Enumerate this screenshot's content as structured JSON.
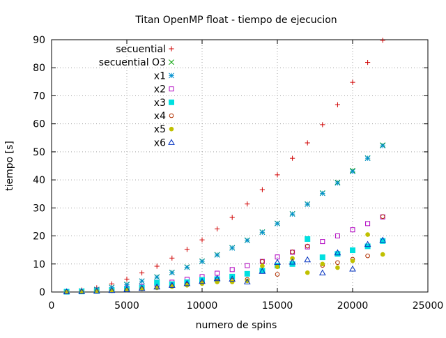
{
  "chart_data": {
    "type": "scatter",
    "title": "Titan OpenMP float - tiempo de ejecucion",
    "xlabel": "numero de spins",
    "ylabel": "tiempo [s]",
    "xlim": [
      0,
      25000
    ],
    "ylim": [
      0,
      90
    ],
    "xticks": [
      0,
      5000,
      10000,
      15000,
      20000,
      25000
    ],
    "yticks": [
      0,
      10,
      20,
      30,
      40,
      50,
      60,
      70,
      80,
      90
    ],
    "grid": true,
    "legend_position": "top-left",
    "x": [
      1000,
      2000,
      3000,
      4000,
      5000,
      6000,
      7000,
      8000,
      9000,
      10000,
      11000,
      12000,
      13000,
      14000,
      15000,
      16000,
      17000,
      18000,
      19000,
      20000,
      21000,
      22000
    ],
    "series": [
      {
        "name": "secuential",
        "marker": "plus",
        "color": "#d00000",
        "values": [
          0.2,
          0.7,
          1.5,
          2.9,
          4.6,
          6.8,
          9.2,
          12.1,
          15.2,
          18.6,
          22.5,
          26.6,
          31.4,
          36.5,
          41.8,
          47.7,
          53.2,
          59.7,
          66.8,
          74.8,
          81.9,
          89.8
        ]
      },
      {
        "name": "secuential O3",
        "marker": "cross",
        "color": "#00a000",
        "values": [
          0.1,
          0.4,
          0.9,
          1.7,
          2.7,
          3.9,
          5.4,
          7.0,
          8.9,
          11.0,
          13.3,
          15.8,
          18.5,
          21.4,
          24.5,
          27.9,
          31.4,
          35.3,
          39.1,
          43.3,
          47.8,
          52.4
        ]
      },
      {
        "name": "x1",
        "marker": "star",
        "color": "#0090d0",
        "values": [
          0.1,
          0.4,
          0.9,
          1.6,
          2.6,
          3.9,
          5.3,
          6.9,
          8.8,
          10.9,
          13.2,
          15.7,
          18.4,
          21.3,
          24.4,
          27.8,
          31.3,
          35.2,
          38.9,
          43.0,
          47.7,
          52.2
        ]
      },
      {
        "name": "x2",
        "marker": "square",
        "color": "#b000c0",
        "values": [
          0.1,
          0.2,
          0.5,
          0.9,
          1.4,
          2.0,
          2.7,
          3.5,
          4.5,
          5.5,
          6.7,
          8.0,
          9.4,
          10.9,
          12.5,
          14.2,
          16.1,
          18.0,
          20.0,
          22.2,
          24.4,
          26.8
        ]
      },
      {
        "name": "x3",
        "marker": "filled-square",
        "color": "#00e0e0",
        "values": [
          0.1,
          0.2,
          0.4,
          0.7,
          1.1,
          1.6,
          3.3,
          2.8,
          3.5,
          4.3,
          4.6,
          5.5,
          6.5,
          7.6,
          9.4,
          10.0,
          18.9,
          12.4,
          13.6,
          14.9,
          16.3,
          18.2
        ]
      },
      {
        "name": "x4",
        "marker": "circle",
        "color": "#b03000",
        "values": [
          0.05,
          0.15,
          0.3,
          0.5,
          0.8,
          1.2,
          1.6,
          2.1,
          2.7,
          3.3,
          3.9,
          4.1,
          4.5,
          10.9,
          6.3,
          14.3,
          16.4,
          9.5,
          10.5,
          11.7,
          12.9,
          26.9
        ]
      },
      {
        "name": "x5",
        "marker": "filled-circle",
        "color": "#c0c000",
        "values": [
          0.05,
          0.15,
          0.3,
          0.5,
          0.8,
          1.1,
          1.5,
          1.9,
          2.4,
          3.0,
          3.6,
          3.6,
          4.0,
          9.3,
          9.0,
          12.0,
          6.9,
          10.0,
          8.7,
          11.1,
          20.5,
          13.4
        ]
      },
      {
        "name": "x6",
        "marker": "triangle",
        "color": "#0030c0",
        "values": [
          0.1,
          0.2,
          0.3,
          0.6,
          0.9,
          1.3,
          1.8,
          2.4,
          3.0,
          3.8,
          4.8,
          4.6,
          3.6,
          7.4,
          10.6,
          10.7,
          11.5,
          6.8,
          14.0,
          8.2,
          17.0,
          18.5
        ]
      }
    ]
  }
}
